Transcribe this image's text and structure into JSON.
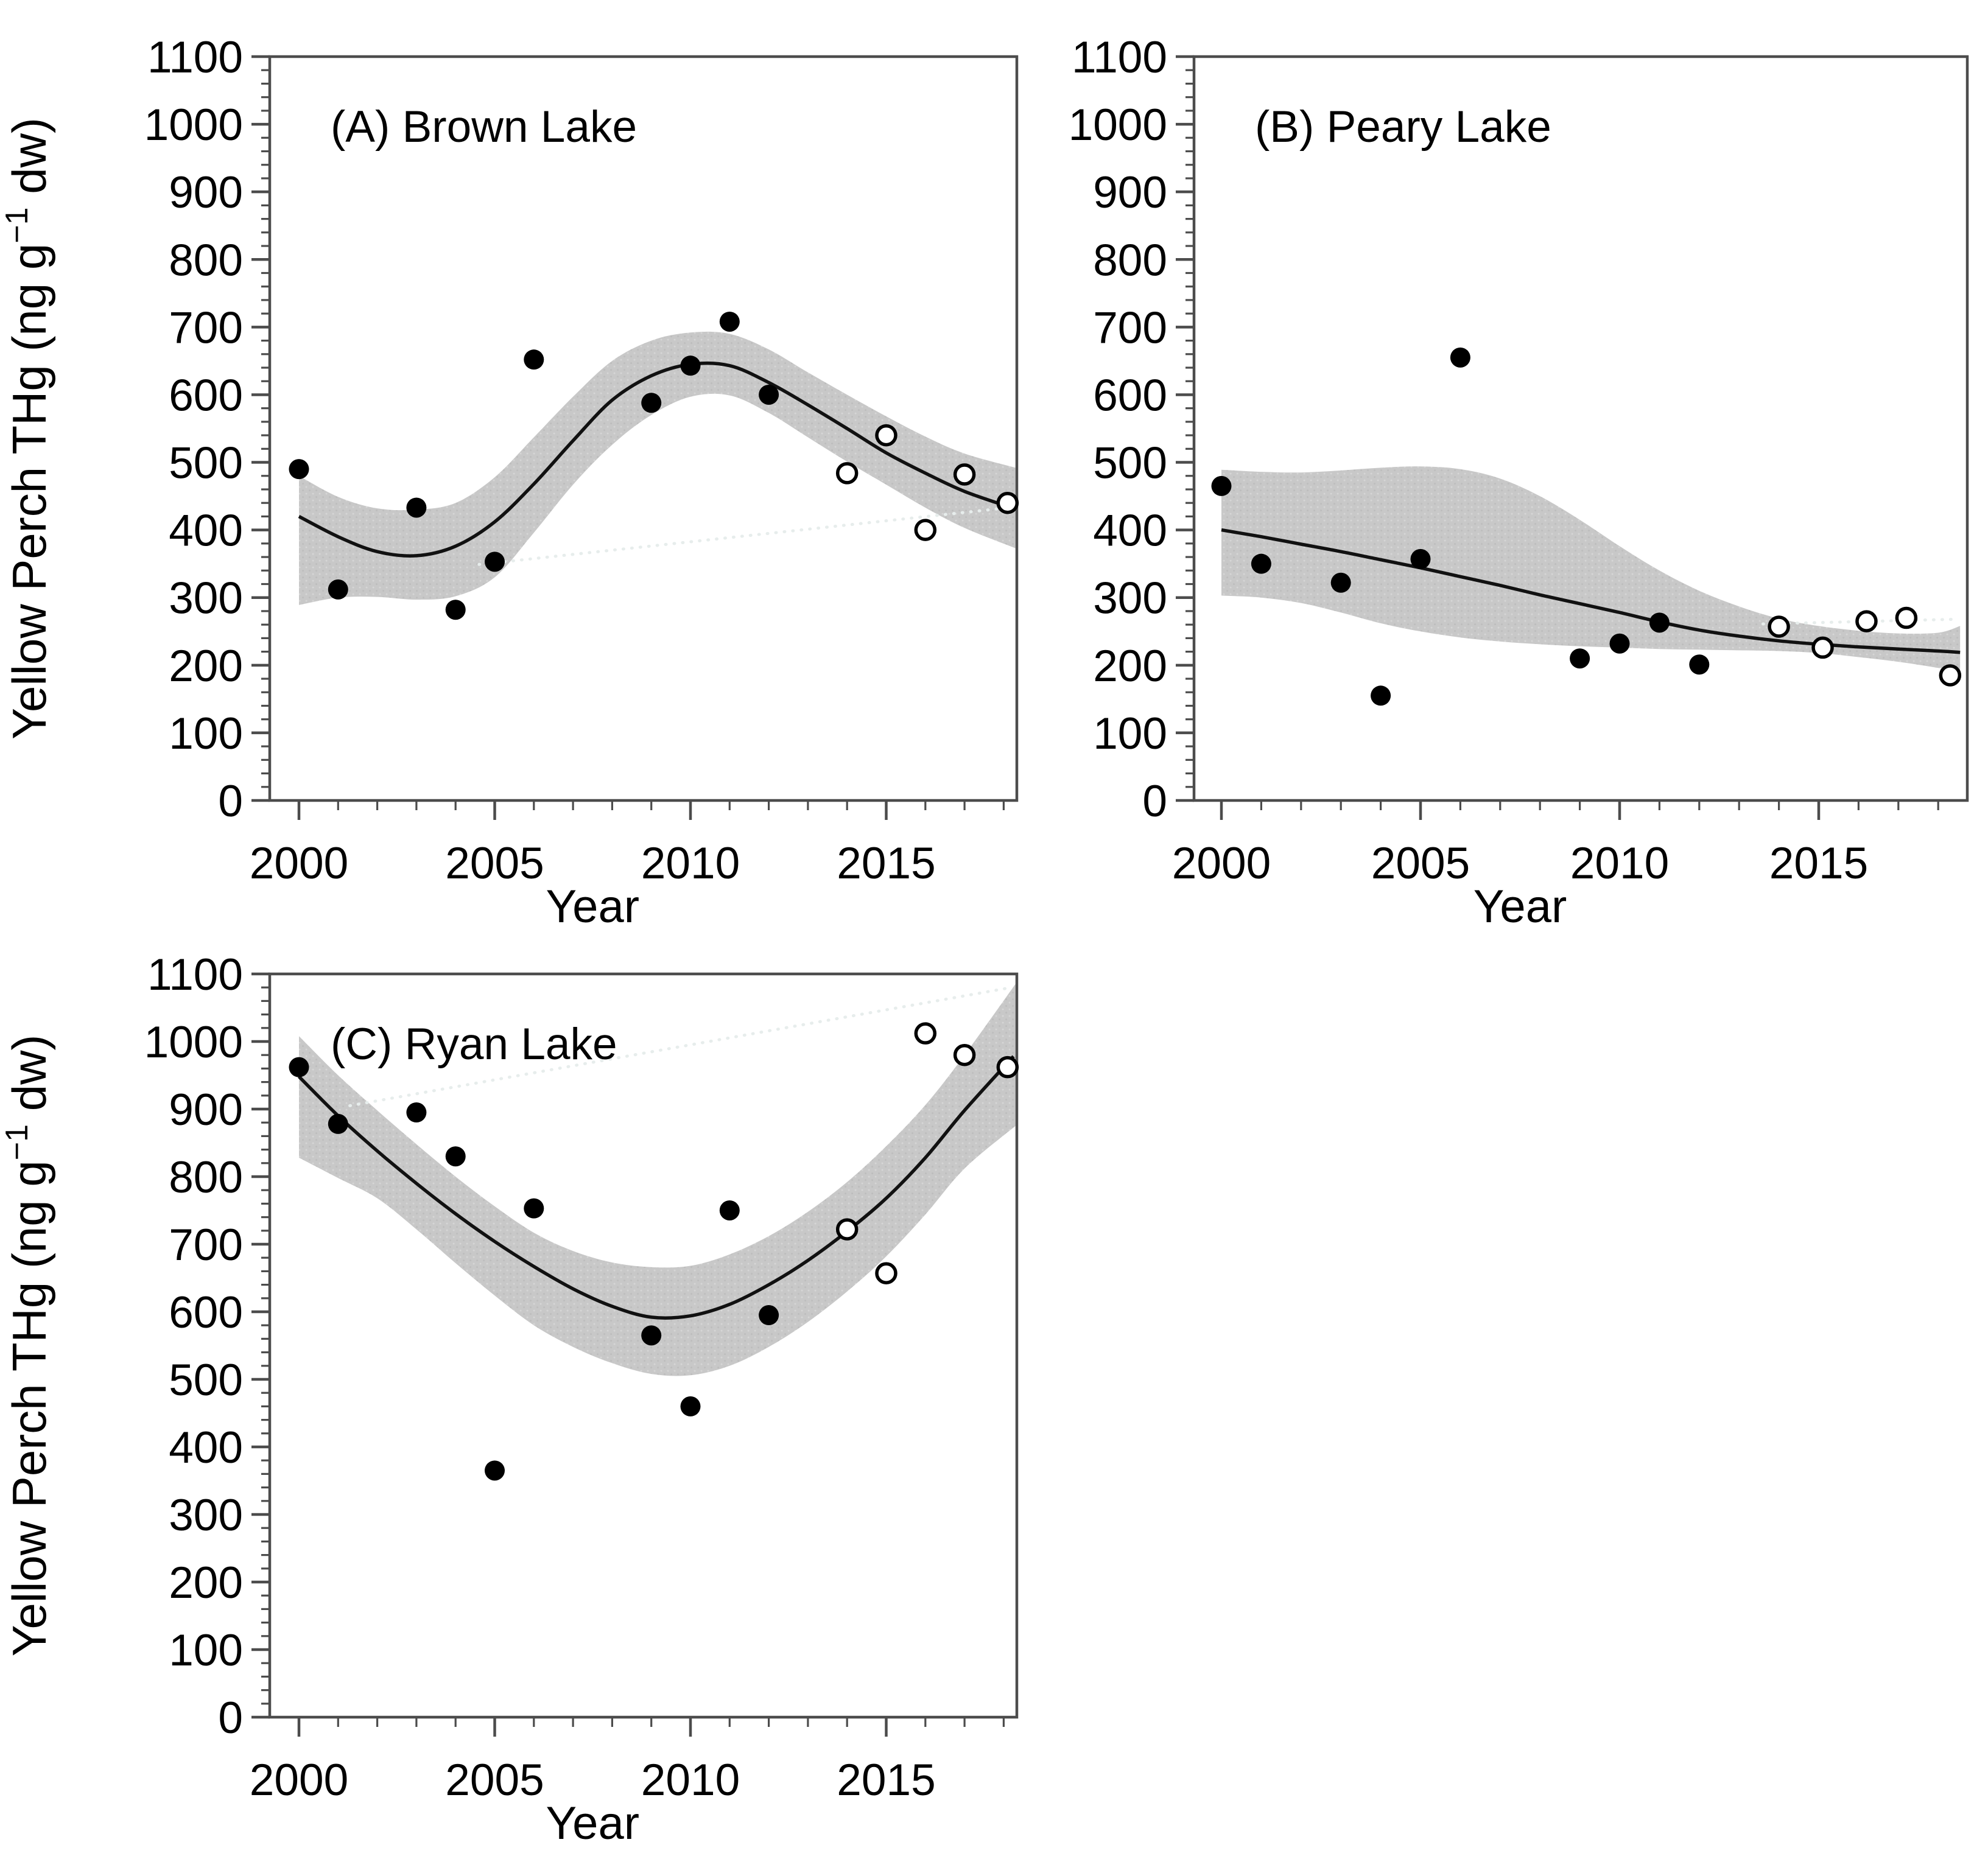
{
  "figure": {
    "x_axis_label": "Year",
    "y_axis_label": {
      "prefix": "Yellow Perch THg (ng g",
      "superscript": "−1",
      "suffix": " dw)"
    }
  },
  "colors": {
    "band_gray": "#c8c8c8",
    "band_dot_dark": "#bdbdbd",
    "band_dot_light": "#d6d6d6",
    "trend_black": "#111111",
    "point_black": "#000000",
    "open_point_fill": "#ffffff",
    "frame_gray": "#4c4c4c",
    "faint_dotted": "#e7edec",
    "text_black": "#000000"
  },
  "chart_data": [
    {
      "type": "scatter",
      "panel": "A",
      "title": "(A) Brown Lake",
      "xlabel": "Year",
      "ylabel": "Yellow Perch THg (ng g-1 dw)",
      "xlim": [
        1999.25,
        2018.34
      ],
      "ylim": [
        0,
        1100
      ],
      "x_ticks": [
        2000,
        2005,
        2010,
        2015
      ],
      "x_minor_step": 1,
      "y_tick_step": 100,
      "y_minor_step": 20,
      "grid": false,
      "legend": "none",
      "filled_points": [
        [
          2000,
          490
        ],
        [
          2001,
          312
        ],
        [
          2003,
          433
        ],
        [
          2004,
          282
        ],
        [
          2005,
          353
        ],
        [
          2006,
          652
        ],
        [
          2009,
          588
        ],
        [
          2010,
          643
        ],
        [
          2011,
          708
        ],
        [
          2012,
          600
        ]
      ],
      "open_points": [
        [
          2014,
          484
        ],
        [
          2015,
          540
        ],
        [
          2016,
          400
        ],
        [
          2017,
          482
        ],
        [
          2018.1,
          440
        ]
      ],
      "trend_line": [
        [
          2000,
          420
        ],
        [
          2001,
          390
        ],
        [
          2002,
          368
        ],
        [
          2003,
          362
        ],
        [
          2004,
          376
        ],
        [
          2005,
          412
        ],
        [
          2006,
          468
        ],
        [
          2007,
          532
        ],
        [
          2008,
          592
        ],
        [
          2009,
          628
        ],
        [
          2010,
          645
        ],
        [
          2011,
          643
        ],
        [
          2012,
          618
        ],
        [
          2013,
          585
        ],
        [
          2014,
          550
        ],
        [
          2015,
          514
        ],
        [
          2016,
          484
        ],
        [
          2017,
          457
        ],
        [
          2018.2,
          433
        ]
      ],
      "band_upper": [
        [
          2000,
          480
        ],
        [
          2001,
          449
        ],
        [
          2002,
          432
        ],
        [
          2003,
          430
        ],
        [
          2004,
          440
        ],
        [
          2005,
          478
        ],
        [
          2006,
          537
        ],
        [
          2007,
          597
        ],
        [
          2008,
          650
        ],
        [
          2009,
          680
        ],
        [
          2010,
          692
        ],
        [
          2011,
          690
        ],
        [
          2012,
          667
        ],
        [
          2013,
          633
        ],
        [
          2014,
          600
        ],
        [
          2015,
          568
        ],
        [
          2016,
          538
        ],
        [
          2017,
          513
        ],
        [
          2018.3,
          492
        ]
      ],
      "band_lower": [
        [
          2000,
          289
        ],
        [
          2001,
          300
        ],
        [
          2002,
          301
        ],
        [
          2003,
          297
        ],
        [
          2004,
          302
        ],
        [
          2005,
          330
        ],
        [
          2006,
          396
        ],
        [
          2007,
          467
        ],
        [
          2008,
          526
        ],
        [
          2009,
          570
        ],
        [
          2010,
          597
        ],
        [
          2011,
          599
        ],
        [
          2012,
          573
        ],
        [
          2013,
          537
        ],
        [
          2014,
          501
        ],
        [
          2015,
          467
        ],
        [
          2016,
          433
        ],
        [
          2017,
          403
        ],
        [
          2018.3,
          373
        ]
      ],
      "faint_dotted_line": [
        [
          2004.6,
          349
        ],
        [
          2018.3,
          434
        ]
      ]
    },
    {
      "type": "scatter",
      "panel": "B",
      "title": "(B) Peary Lake",
      "xlabel": "Year",
      "ylabel": "Yellow Perch THg (ng g-1 dw)",
      "xlim": [
        1999.31,
        2018.73
      ],
      "ylim": [
        0,
        1100
      ],
      "x_ticks": [
        2000,
        2005,
        2010,
        2015
      ],
      "x_minor_step": 1,
      "y_tick_step": 100,
      "y_minor_step": 20,
      "grid": false,
      "legend": "none",
      "filled_points": [
        [
          2000,
          465
        ],
        [
          2001,
          350
        ],
        [
          2003,
          322
        ],
        [
          2004,
          155
        ],
        [
          2005,
          357
        ],
        [
          2006,
          655
        ],
        [
          2009,
          210
        ],
        [
          2010,
          232
        ],
        [
          2011,
          263
        ],
        [
          2012,
          201
        ]
      ],
      "open_points": [
        [
          2014,
          257
        ],
        [
          2015.1,
          226
        ],
        [
          2016.2,
          265
        ],
        [
          2017.2,
          270
        ],
        [
          2018.3,
          185
        ]
      ],
      "trend_line": [
        [
          2000,
          400
        ],
        [
          2001,
          390
        ],
        [
          2002,
          379
        ],
        [
          2003,
          368
        ],
        [
          2004,
          356
        ],
        [
          2005,
          344
        ],
        [
          2006,
          331
        ],
        [
          2007,
          318
        ],
        [
          2008,
          304
        ],
        [
          2009,
          291
        ],
        [
          2010,
          278
        ],
        [
          2011,
          264
        ],
        [
          2012,
          252
        ],
        [
          2013,
          243
        ],
        [
          2014,
          236
        ],
        [
          2015,
          231
        ],
        [
          2016,
          227
        ],
        [
          2017,
          224
        ],
        [
          2018,
          221
        ],
        [
          2018.55,
          219
        ]
      ],
      "band_upper": [
        [
          2000,
          489
        ],
        [
          2001,
          486
        ],
        [
          2002,
          485
        ],
        [
          2003,
          488
        ],
        [
          2004,
          492
        ],
        [
          2005,
          494
        ],
        [
          2006,
          490
        ],
        [
          2007,
          476
        ],
        [
          2008,
          450
        ],
        [
          2009,
          415
        ],
        [
          2010,
          376
        ],
        [
          2011,
          340
        ],
        [
          2012,
          310
        ],
        [
          2013,
          287
        ],
        [
          2014,
          269
        ],
        [
          2015,
          258
        ],
        [
          2016,
          251
        ],
        [
          2017,
          247
        ],
        [
          2018,
          248
        ],
        [
          2018.55,
          258
        ]
      ],
      "band_lower": [
        [
          2000,
          303
        ],
        [
          2001,
          300
        ],
        [
          2002,
          292
        ],
        [
          2003,
          278
        ],
        [
          2004,
          262
        ],
        [
          2005,
          250
        ],
        [
          2006,
          241
        ],
        [
          2007,
          235
        ],
        [
          2008,
          231
        ],
        [
          2009,
          228
        ],
        [
          2010,
          226
        ],
        [
          2011,
          224
        ],
        [
          2012,
          223
        ],
        [
          2013,
          222
        ],
        [
          2014,
          221
        ],
        [
          2015,
          218
        ],
        [
          2016,
          212
        ],
        [
          2017,
          205
        ],
        [
          2018,
          196
        ],
        [
          2018.55,
          190
        ]
      ],
      "faint_dotted_line": [
        [
          2013.6,
          261
        ],
        [
          2018.45,
          268
        ]
      ]
    },
    {
      "type": "scatter",
      "panel": "C",
      "title": "(C) Ryan Lake",
      "xlabel": "Year",
      "ylabel": "Yellow Perch THg (ng g-1 dw)",
      "xlim": [
        1999.25,
        2018.34
      ],
      "ylim": [
        0,
        1100
      ],
      "x_ticks": [
        2000,
        2005,
        2010,
        2015
      ],
      "x_minor_step": 1,
      "y_tick_step": 100,
      "y_minor_step": 20,
      "grid": false,
      "legend": "none",
      "filled_points": [
        [
          2000,
          962
        ],
        [
          2001,
          878
        ],
        [
          2003,
          895
        ],
        [
          2004,
          830
        ],
        [
          2005,
          365
        ],
        [
          2006,
          753
        ],
        [
          2009,
          565
        ],
        [
          2010,
          460
        ],
        [
          2011,
          750
        ],
        [
          2012,
          595
        ]
      ],
      "open_points": [
        [
          2014,
          722
        ],
        [
          2015,
          657
        ],
        [
          2016,
          1012
        ],
        [
          2017,
          980
        ],
        [
          2018.1,
          962
        ]
      ],
      "trend_line": [
        [
          2000,
          948
        ],
        [
          2001,
          890
        ],
        [
          2002,
          838
        ],
        [
          2003,
          790
        ],
        [
          2004,
          745
        ],
        [
          2005,
          704
        ],
        [
          2006,
          667
        ],
        [
          2007,
          634
        ],
        [
          2008,
          608
        ],
        [
          2009,
          592
        ],
        [
          2010,
          594
        ],
        [
          2011,
          611
        ],
        [
          2012,
          640
        ],
        [
          2013,
          676
        ],
        [
          2014,
          719
        ],
        [
          2015,
          768
        ],
        [
          2016,
          828
        ],
        [
          2017,
          898
        ],
        [
          2018.25,
          978
        ]
      ],
      "band_upper": [
        [
          2000,
          1008
        ],
        [
          2001,
          950
        ],
        [
          2002,
          898
        ],
        [
          2003,
          848
        ],
        [
          2004,
          800
        ],
        [
          2005,
          756
        ],
        [
          2006,
          717
        ],
        [
          2007,
          690
        ],
        [
          2008,
          673
        ],
        [
          2009,
          666
        ],
        [
          2010,
          668
        ],
        [
          2011,
          685
        ],
        [
          2012,
          712
        ],
        [
          2013,
          748
        ],
        [
          2014,
          792
        ],
        [
          2015,
          845
        ],
        [
          2016,
          906
        ],
        [
          2017,
          980
        ],
        [
          2018.3,
          1085
        ]
      ],
      "band_lower": [
        [
          2000,
          828
        ],
        [
          2001,
          798
        ],
        [
          2002,
          768
        ],
        [
          2003,
          722
        ],
        [
          2004,
          672
        ],
        [
          2005,
          624
        ],
        [
          2006,
          580
        ],
        [
          2007,
          548
        ],
        [
          2008,
          524
        ],
        [
          2009,
          508
        ],
        [
          2010,
          506
        ],
        [
          2011,
          520
        ],
        [
          2012,
          548
        ],
        [
          2013,
          585
        ],
        [
          2014,
          630
        ],
        [
          2015,
          682
        ],
        [
          2016,
          744
        ],
        [
          2017,
          812
        ],
        [
          2018.3,
          875
        ]
      ],
      "faint_dotted_line": [
        [
          2001.3,
          905
        ],
        [
          2018.2,
          1080
        ]
      ]
    }
  ]
}
